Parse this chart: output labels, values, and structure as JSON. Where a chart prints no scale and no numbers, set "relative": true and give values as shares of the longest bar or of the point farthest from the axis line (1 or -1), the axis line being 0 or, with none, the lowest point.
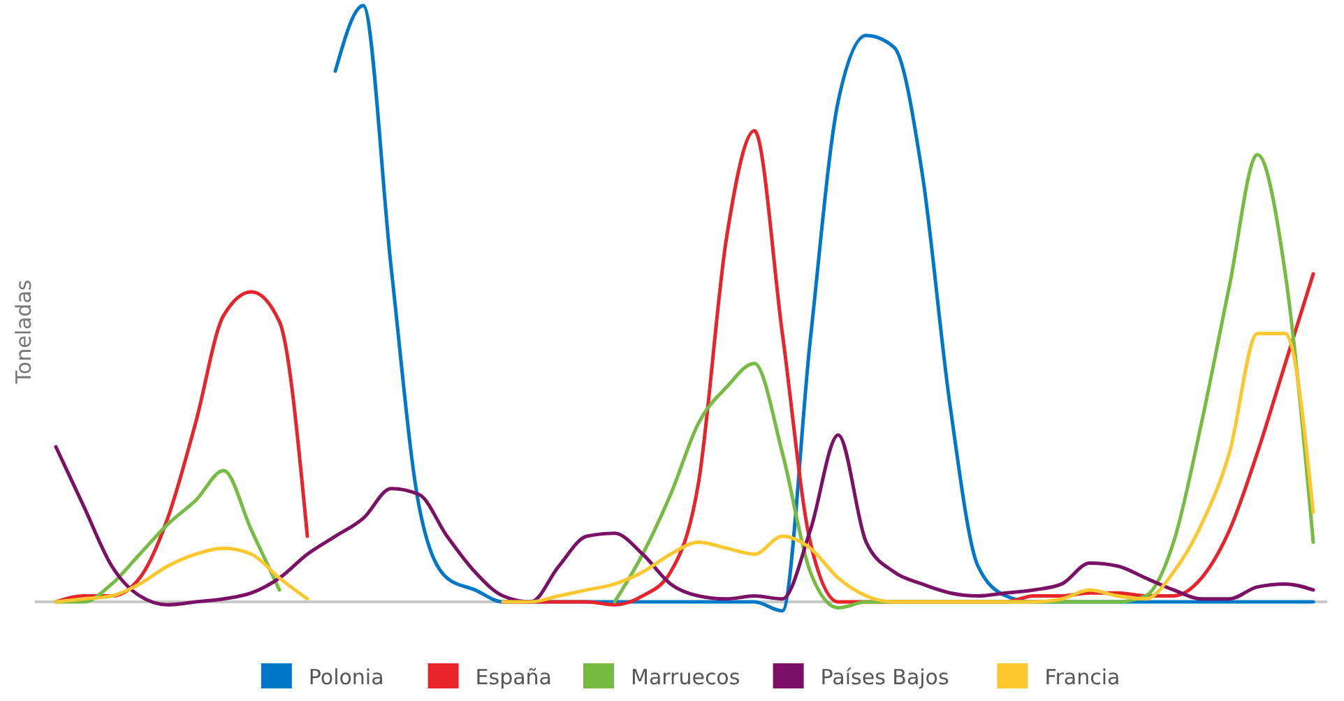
{
  "chart_data": {
    "type": "line",
    "relative": true,
    "ylabel": "Toneladas",
    "legend": "bottom",
    "marker": "none",
    "line_style": "solid",
    "categories": [
      null,
      null,
      null,
      null,
      null,
      null,
      null,
      null,
      null,
      null,
      null,
      null,
      null,
      null,
      null,
      null,
      null,
      null,
      null,
      null,
      null,
      null,
      null,
      null,
      null,
      null,
      null,
      null,
      null,
      null,
      null,
      null,
      null,
      null,
      null,
      null,
      null,
      null,
      null,
      null,
      null,
      null,
      null,
      null,
      null,
      null
    ],
    "series": [
      {
        "name": "Polonia",
        "color": "#0077c8",
        "values": [
          null,
          null,
          null,
          null,
          null,
          null,
          null,
          null,
          null,
          null,
          0.89,
          1.0,
          0.56,
          0.16,
          0.04,
          0.02,
          0,
          0,
          0,
          0,
          0,
          0,
          0,
          0,
          0,
          0,
          -0.015,
          0.44,
          0.84,
          0.95,
          0.93,
          0.72,
          0.33,
          0.06,
          0.01,
          0,
          0,
          0,
          0,
          0,
          0,
          0,
          0,
          0,
          0,
          0
        ]
      },
      {
        "name": "España",
        "color": "#e8242b",
        "values": [
          0,
          0.01,
          0.01,
          0.04,
          0.14,
          0.3,
          0.48,
          0.52,
          0.47,
          0.11,
          null,
          null,
          null,
          null,
          null,
          null,
          0,
          0,
          0,
          0,
          -0.005,
          0.01,
          0.05,
          0.2,
          0.61,
          0.79,
          0.45,
          0.1,
          0,
          0,
          0,
          0,
          0,
          0,
          0,
          0.01,
          0.01,
          0.015,
          0.015,
          0.01,
          0.01,
          0.04,
          0.12,
          0.25,
          0.4,
          0.55
        ]
      },
      {
        "name": "Marruecos",
        "color": "#76bc43",
        "values": [
          0,
          0,
          0.03,
          0.08,
          0.13,
          0.17,
          0.22,
          0.12,
          0.02,
          null,
          null,
          null,
          null,
          null,
          null,
          null,
          null,
          null,
          null,
          null,
          0,
          0.08,
          0.18,
          0.3,
          0.36,
          0.4,
          0.25,
          0.05,
          -0.01,
          0,
          0,
          0,
          0,
          0,
          0,
          0,
          0,
          0,
          0,
          0.01,
          0.1,
          0.3,
          0.53,
          0.75,
          0.55,
          0.1
        ]
      },
      {
        "name": "Países Bajos",
        "color": "#7b1166",
        "values": [
          0.26,
          0.16,
          0.06,
          0.01,
          -0.005,
          0,
          0.005,
          0.015,
          0.04,
          0.08,
          0.11,
          0.14,
          0.19,
          0.18,
          0.11,
          0.05,
          0.01,
          0,
          0.06,
          0.11,
          0.115,
          0.08,
          0.03,
          0.01,
          0.005,
          0.01,
          0.005,
          0.12,
          0.28,
          0.1,
          0.05,
          0.03,
          0.015,
          0.01,
          0.015,
          0.02,
          0.03,
          0.065,
          0.06,
          0.04,
          0.02,
          0.005,
          0.005,
          0.025,
          0.03,
          0.02
        ]
      },
      {
        "name": "Francia",
        "color": "#fdc82f",
        "values": [
          0,
          0.005,
          0.01,
          0.03,
          0.06,
          0.08,
          0.09,
          0.08,
          0.04,
          0.005,
          null,
          null,
          null,
          null,
          null,
          null,
          0,
          0,
          0.01,
          0.02,
          0.03,
          0.05,
          0.08,
          0.1,
          0.09,
          0.08,
          0.11,
          0.09,
          0.04,
          0.01,
          0,
          0,
          0,
          0,
          0,
          0,
          0.005,
          0.02,
          0.01,
          0.005,
          0.05,
          0.13,
          0.25,
          0.45,
          0.45,
          0.15
        ]
      }
    ]
  }
}
